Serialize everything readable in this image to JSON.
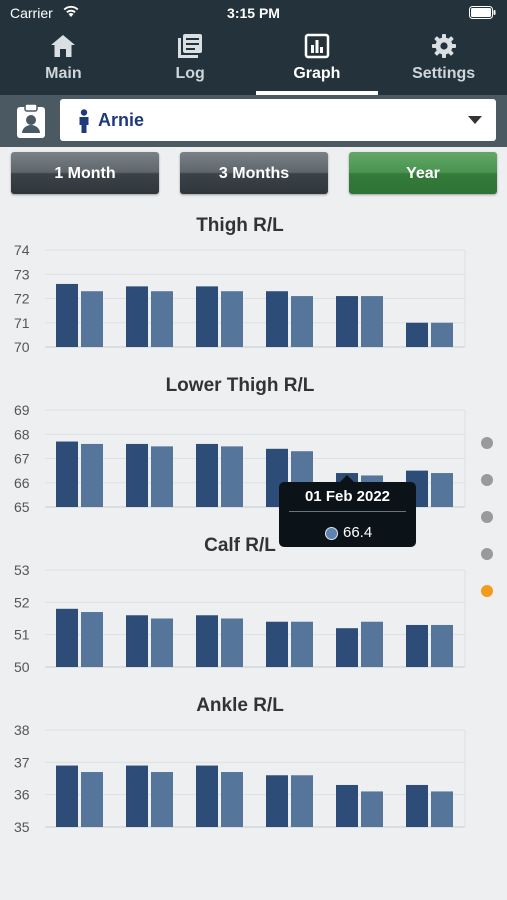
{
  "status": {
    "carrier": "Carrier",
    "time": "3:15 PM"
  },
  "tabs": [
    {
      "label": "Main",
      "icon": "home-icon"
    },
    {
      "label": "Log",
      "icon": "log-icon"
    },
    {
      "label": "Graph",
      "icon": "graph-icon",
      "active": true
    },
    {
      "label": "Settings",
      "icon": "gear-icon"
    }
  ],
  "patient": {
    "name": "Arnie"
  },
  "ranges": [
    {
      "label": "1 Month",
      "selected": false
    },
    {
      "label": "3 Months",
      "selected": false
    },
    {
      "label": "Year",
      "selected": true
    }
  ],
  "colors": {
    "series_right": "#2d4d78",
    "series_left": "#56759b",
    "active_range": "#3e8d45",
    "active_dot": "#f39b1b"
  },
  "tooltip": {
    "date": "01 Feb 2022",
    "value": "66.4"
  },
  "page_dots": {
    "count": 5,
    "active_index": 4
  },
  "chart_data": [
    {
      "type": "bar",
      "title": "Thigh R/L",
      "ylim": [
        70,
        74
      ],
      "yticks": [
        "70",
        "71",
        "72",
        "73",
        "74"
      ],
      "grid": true,
      "series": [
        {
          "values": [
            72.6,
            72.5,
            72.5,
            72.3,
            72.1,
            71.0
          ]
        },
        {
          "values": [
            72.3,
            72.3,
            72.3,
            72.1,
            72.1,
            71.0
          ]
        }
      ]
    },
    {
      "type": "bar",
      "title": "Lower Thigh R/L",
      "ylim": [
        65,
        69
      ],
      "yticks": [
        "65",
        "66",
        "67",
        "68",
        "69"
      ],
      "grid": true,
      "series": [
        {
          "values": [
            67.7,
            67.6,
            67.6,
            67.4,
            66.4,
            66.5
          ]
        },
        {
          "values": [
            67.6,
            67.5,
            67.5,
            67.3,
            66.3,
            66.4
          ]
        }
      ]
    },
    {
      "type": "bar",
      "title": "Calf R/L",
      "ylim": [
        50,
        53
      ],
      "yticks": [
        "50",
        "51",
        "52",
        "53"
      ],
      "grid": true,
      "series": [
        {
          "values": [
            51.8,
            51.6,
            51.6,
            51.4,
            51.2,
            51.3
          ]
        },
        {
          "values": [
            51.7,
            51.5,
            51.5,
            51.4,
            51.4,
            51.3
          ]
        }
      ]
    },
    {
      "type": "bar",
      "title": "Ankle R/L",
      "ylim": [
        35,
        38
      ],
      "yticks": [
        "35",
        "36",
        "37",
        "38"
      ],
      "grid": true,
      "series": [
        {
          "values": [
            36.9,
            36.9,
            36.9,
            36.6,
            36.3,
            36.3
          ]
        },
        {
          "values": [
            36.7,
            36.7,
            36.7,
            36.6,
            36.1,
            36.1
          ]
        }
      ]
    }
  ]
}
